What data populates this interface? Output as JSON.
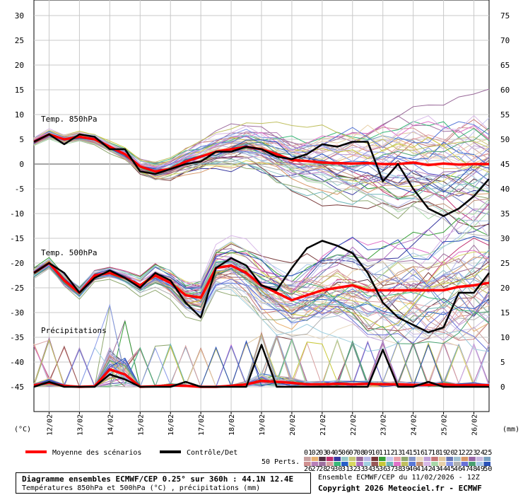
{
  "chart_data": {
    "type": "line",
    "title": "Diagramme ensembles ECMWF/CEP 0.25° sur 360h : 44.1N 12.4E",
    "subtitle": "Températures 850hPa et 500hPa (°C) , précipitations (mm)",
    "run_info": "Ensemble ECMWF/CEP du 11/02/2026 - 12Z",
    "copyright": "Copyright 2026 Meteociel.fr - ECMWF",
    "left_axis": {
      "unit": "(°C)",
      "ticks": [
        30,
        25,
        20,
        15,
        10,
        5,
        0,
        -5,
        -10,
        -15,
        -20,
        -25,
        -30,
        -35,
        -40,
        -45
      ],
      "ylim": [
        -45,
        30
      ]
    },
    "right_axis": {
      "unit": "(mm)",
      "ticks": [
        75,
        70,
        65,
        60,
        55,
        50,
        45,
        40,
        35,
        30,
        25,
        20,
        15,
        10,
        5,
        0
      ],
      "ylim": [
        0,
        75
      ]
    },
    "x_dates": [
      "12/02",
      "13/02",
      "14/02",
      "15/02",
      "16/02",
      "17/02",
      "18/02",
      "19/02",
      "20/02",
      "21/02",
      "22/02",
      "23/02",
      "24/02",
      "25/02",
      "26/02"
    ],
    "x_range_days": [
      11.5,
      26.5
    ],
    "grid": true,
    "sections": [
      "Temp. 850hPa",
      "Temp. 500hPa",
      "Précipitations"
    ],
    "legend": {
      "mean_label": "Moyenne des scénarios",
      "control_label": "Contrôle/Det",
      "perts_label": "50 Perts.",
      "perts_top": [
        "01",
        "02",
        "03",
        "04",
        "05",
        "06",
        "07",
        "08",
        "09",
        "10",
        "11",
        "12",
        "13",
        "14",
        "15",
        "16",
        "17",
        "18",
        "19",
        "20",
        "21",
        "22",
        "23",
        "24",
        "25"
      ],
      "perts_bottom": [
        "26",
        "27",
        "28",
        "29",
        "30",
        "31",
        "32",
        "33",
        "34",
        "35",
        "36",
        "37",
        "38",
        "39",
        "40",
        "41",
        "42",
        "43",
        "44",
        "45",
        "46",
        "47",
        "48",
        "49",
        "50"
      ],
      "perts_colors_top": [
        "#c8a0a0",
        "#e8b070",
        "#503040",
        "#c03070",
        "#3838a0",
        "#98c8c8",
        "#c8c878",
        "#986898",
        "#b8b8e8",
        "#783838",
        "#38a038",
        "#c8c8f0",
        "#e8a0a8",
        "#90a870",
        "#8898c8",
        "#e8d8c0",
        "#c0a0d8",
        "#c87878",
        "#e0c8a0",
        "#6878b8",
        "#a0c0d0",
        "#d89868",
        "#9868a8",
        "#c8b8e0",
        "#78a0c0"
      ],
      "perts_colors_bottom": [
        "#d09090",
        "#b880b8",
        "#a070a0",
        "#d8a0a0",
        "#38b878",
        "#2860c8",
        "#d8d860",
        "#b070c0",
        "#a0d0e0",
        "#985858",
        "#c8c838",
        "#70b8b8",
        "#e070c8",
        "#c0c060",
        "#5878d8",
        "#c09078",
        "#d8b8e8",
        "#a8d8a8",
        "#e8d0a8",
        "#8898e8",
        "#b0b0b0",
        "#6870d8",
        "#48a070",
        "#a8c8e8",
        "#2850b8"
      ]
    },
    "series": [
      {
        "name": "Moyenne des scénarios",
        "group": "850hPa",
        "axis": "left",
        "x": [
          11.5,
          12,
          12.5,
          13,
          13.5,
          14,
          14.5,
          15,
          15.5,
          16,
          16.5,
          17,
          17.5,
          18,
          18.5,
          19,
          19.5,
          20,
          20.5,
          21,
          21.5,
          22,
          22.5,
          23,
          23.5,
          24,
          24.5,
          25,
          25.5,
          26,
          26.5
        ],
        "y": [
          4.5,
          6,
          5,
          5.5,
          5,
          3.5,
          2,
          -0.5,
          -1.5,
          -1,
          0.5,
          1.5,
          2.5,
          3,
          3.5,
          3,
          2,
          0.8,
          0.6,
          0.3,
          0.2,
          0.1,
          0.2,
          0,
          0,
          0.3,
          -0.2,
          0.1,
          -0.1,
          0,
          0
        ]
      },
      {
        "name": "Contrôle/Det",
        "group": "850hPa",
        "axis": "left",
        "x": [
          11.5,
          12,
          12.5,
          13,
          13.5,
          14,
          14.5,
          15,
          15.5,
          16,
          16.5,
          17,
          17.5,
          18,
          18.5,
          19,
          19.5,
          20,
          20.5,
          21,
          21.5,
          22,
          22.5,
          23,
          23.5,
          24,
          24.5,
          25,
          25.5,
          26,
          26.5
        ],
        "y": [
          4.5,
          6,
          4,
          6,
          5.5,
          3,
          3,
          -1.5,
          -2,
          -1,
          0,
          0.5,
          2.5,
          2.5,
          3.5,
          3,
          1.5,
          1,
          2,
          4,
          3.5,
          4.5,
          4.5,
          -3.5,
          0,
          -5,
          -9,
          -10.5,
          -9,
          -6.5,
          -3
        ]
      },
      {
        "name": "Moyenne des scénarios",
        "group": "500hPa",
        "axis": "left",
        "x": [
          11.5,
          12,
          12.5,
          13,
          13.5,
          14,
          14.5,
          15,
          15.5,
          16,
          16.5,
          17,
          17.5,
          18,
          18.5,
          19,
          19.5,
          20,
          20.5,
          21,
          21.5,
          22,
          22.5,
          23,
          23.5,
          24,
          24.5,
          25,
          25.5,
          26,
          26.5
        ],
        "y": [
          -22,
          -20,
          -23.5,
          -26,
          -22.5,
          -22,
          -23,
          -24.5,
          -22.5,
          -24,
          -26.5,
          -27,
          -21,
          -20.5,
          -22,
          -24.5,
          -26,
          -27.5,
          -26.5,
          -25.5,
          -25,
          -24.5,
          -25.5,
          -25.5,
          -25.5,
          -25.5,
          -25.5,
          -25.5,
          -24.8,
          -24.5,
          -24
        ]
      },
      {
        "name": "Contrôle/Det",
        "group": "500hPa",
        "axis": "left",
        "x": [
          11.5,
          12,
          12.5,
          13,
          13.5,
          14,
          14.5,
          15,
          15.5,
          16,
          16.5,
          17,
          17.5,
          18,
          18.5,
          19,
          19.5,
          20,
          20.5,
          21,
          21.5,
          22,
          22.5,
          23,
          23.5,
          24,
          24.5,
          25,
          25.5,
          26,
          26.5
        ],
        "y": [
          -22,
          -20,
          -22,
          -26,
          -23,
          -21.5,
          -23,
          -25,
          -22,
          -23.5,
          -28,
          -31,
          -21,
          -19,
          -20.5,
          -24.5,
          -25.5,
          -21,
          -17,
          -15.5,
          -16.5,
          -18,
          -22,
          -28,
          -31,
          -32.5,
          -34,
          -33,
          -26,
          -26,
          -22
        ]
      },
      {
        "name": "Moyenne des scénarios",
        "group": "precip",
        "axis": "right",
        "x": [
          11.5,
          12,
          12.5,
          13,
          13.5,
          14,
          14.5,
          15,
          15.5,
          16,
          16.5,
          17,
          17.5,
          18,
          18.5,
          19,
          19.5,
          20,
          20.5,
          21,
          21.5,
          22,
          22.5,
          23,
          23.5,
          24,
          24.5,
          25,
          25.5,
          26,
          26.5
        ],
        "y": [
          0.3,
          0.8,
          0.2,
          0,
          0.1,
          3.5,
          2.5,
          0,
          0.1,
          0.3,
          0.2,
          0,
          0,
          0.2,
          0.5,
          1.2,
          1,
          0.8,
          0.5,
          0.5,
          0.6,
          0.5,
          0.6,
          0.5,
          0.5,
          0.4,
          0.4,
          0.5,
          0.3,
          0.4,
          0.3
        ]
      },
      {
        "name": "Contrôle/Det",
        "group": "precip",
        "axis": "right",
        "x": [
          11.5,
          12,
          12.5,
          13,
          13.5,
          14,
          14.5,
          15,
          15.5,
          16,
          16.5,
          17,
          17.5,
          18,
          18.5,
          19,
          19.5,
          20,
          20.5,
          21,
          21.5,
          22,
          22.5,
          23,
          23.5,
          24,
          24.5,
          25,
          25.5,
          26,
          26.5
        ],
        "y": [
          0,
          1,
          0,
          0,
          0,
          2.5,
          1.5,
          0,
          0,
          0,
          1,
          0,
          0,
          0,
          0,
          8.5,
          0,
          0,
          0,
          0,
          0,
          0,
          0,
          7.5,
          0,
          0,
          1,
          0,
          0,
          0,
          0
        ]
      }
    ]
  }
}
